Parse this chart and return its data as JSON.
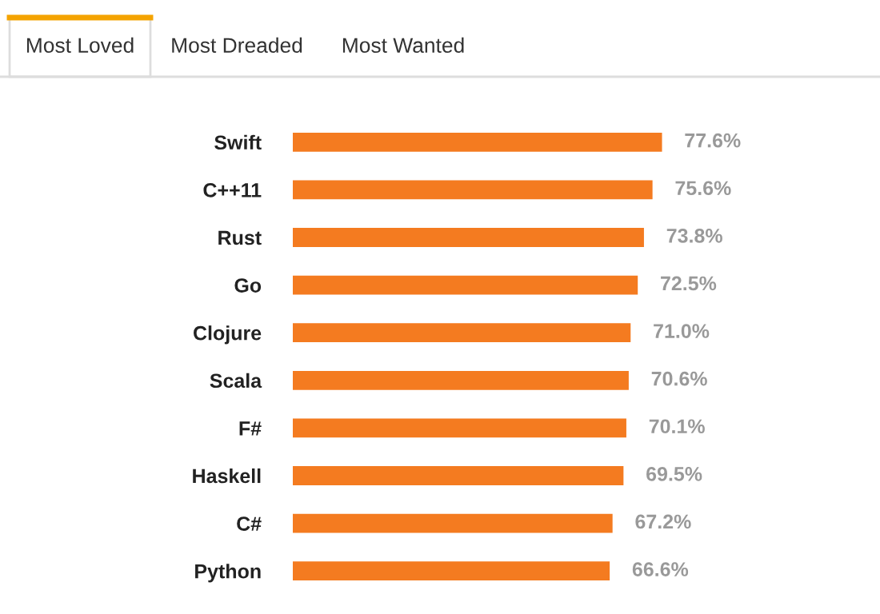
{
  "chart_data": {
    "type": "bar",
    "orientation": "horizontal",
    "annotations": [
      "Most Loved",
      "Most Dreaded",
      "Most Wanted"
    ],
    "categories": [
      "Swift",
      "C++11",
      "Rust",
      "Go",
      "Clojure",
      "Scala",
      "F#",
      "Haskell",
      "C#",
      "Python"
    ],
    "values": [
      77.6,
      75.6,
      73.8,
      72.5,
      71.0,
      70.6,
      70.1,
      69.5,
      67.2,
      66.6
    ],
    "value_labels": [
      "77.6%",
      "75.6%",
      "73.8%",
      "72.5%",
      "71.0%",
      "70.6%",
      "70.1%",
      "69.5%",
      "67.2%",
      "66.6%"
    ],
    "color": "#f47b20",
    "grid": false,
    "legend": false
  }
}
